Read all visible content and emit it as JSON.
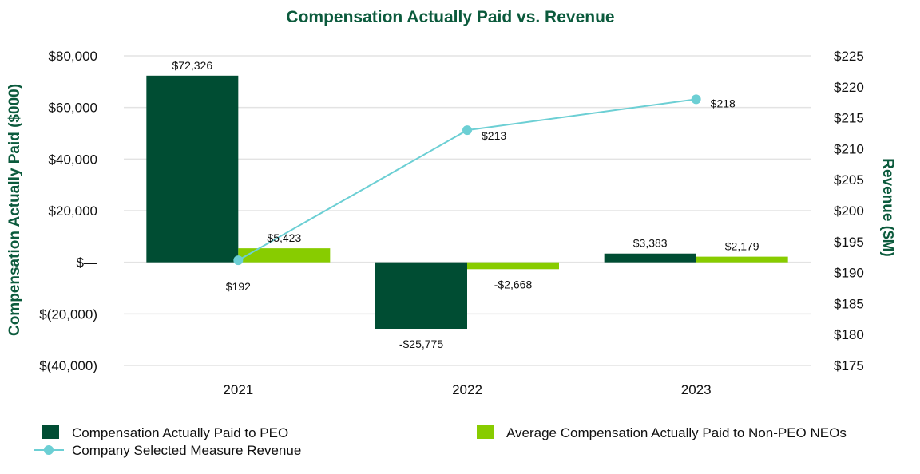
{
  "chart_data": {
    "type": "bar",
    "title": "Compensation Actually Paid vs. Revenue",
    "ylabel": "Compensation Actually Paid ($000)",
    "y2label": "Revenue ($M)",
    "categories": [
      "2021",
      "2022",
      "2023"
    ],
    "ylim": [
      -40000,
      80000
    ],
    "y2lim": [
      175,
      225
    ],
    "y_ticks": [
      80000,
      60000,
      40000,
      20000,
      0,
      -20000,
      -40000
    ],
    "y_tick_labels": [
      "$80,000",
      "$60,000",
      "$40,000",
      "$20,000",
      "$—",
      "$(20,000)",
      "$(40,000)"
    ],
    "y2_ticks": [
      225,
      220,
      215,
      210,
      205,
      200,
      195,
      190,
      185,
      180,
      175
    ],
    "y2_tick_labels": [
      "$225",
      "$220",
      "$215",
      "$210",
      "$205",
      "$200",
      "$195",
      "$190",
      "$185",
      "$180",
      "$175"
    ],
    "series": [
      {
        "name": "Compensation Actually Paid to PEO",
        "type": "bar",
        "color": "#004d33",
        "values": [
          72326,
          -25775,
          3383
        ],
        "labels": [
          "$72,326",
          "-$25,775",
          "$3,383"
        ]
      },
      {
        "name": "Average Compensation Actually Paid to Non-PEO NEOs",
        "type": "bar",
        "color": "#88cc00",
        "values": [
          5423,
          -2668,
          2179
        ],
        "labels": [
          "$5,423",
          "-$2,668",
          "$2,179"
        ]
      },
      {
        "name": "Company Selected Measure Revenue",
        "type": "line",
        "axis": "secondary",
        "color": "#6ccfd4",
        "values": [
          192,
          213,
          218
        ],
        "labels": [
          "$192",
          "$213",
          "$218"
        ]
      }
    ],
    "grid": true,
    "legend_position": "bottom",
    "title_color": "#0b5a3c"
  }
}
